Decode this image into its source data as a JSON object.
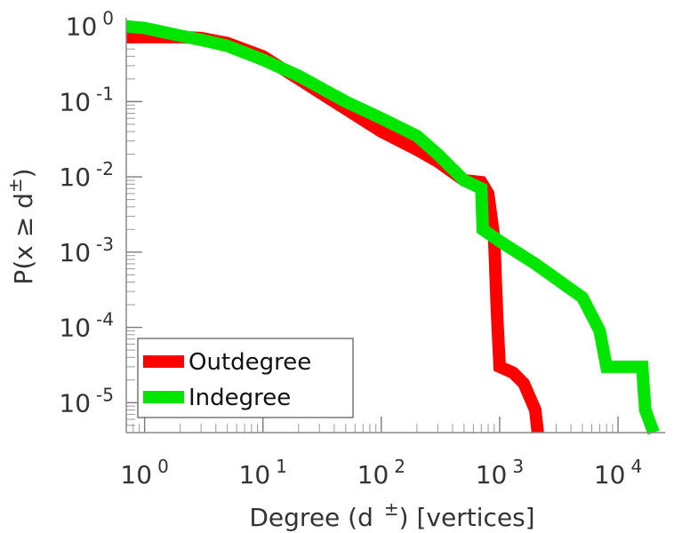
{
  "chart_data": {
    "type": "line",
    "scale": {
      "x": "log",
      "y": "log"
    },
    "xlabel": {
      "main": "Degree (d",
      "sup": "±",
      "suffix": ") [vertices]"
    },
    "ylabel": {
      "main": "P(x ≥ d",
      "sup": "±",
      "suffix": ")"
    },
    "xlim": [
      0.7,
      25000
    ],
    "ylim": [
      4e-06,
      1.3
    ],
    "x_ticks": [
      {
        "value": 1,
        "base": "10",
        "exp": "0"
      },
      {
        "value": 10,
        "base": "10",
        "exp": "1"
      },
      {
        "value": 100,
        "base": "10",
        "exp": "2"
      },
      {
        "value": 1000,
        "base": "10",
        "exp": "3"
      },
      {
        "value": 10000,
        "base": "10",
        "exp": "4"
      }
    ],
    "y_ticks": [
      {
        "value": 1,
        "base": "10",
        "exp": "0"
      },
      {
        "value": 0.1,
        "base": "10",
        "exp": "-1"
      },
      {
        "value": 0.01,
        "base": "10",
        "exp": "-2"
      },
      {
        "value": 0.001,
        "base": "10",
        "exp": "-3"
      },
      {
        "value": 0.0001,
        "base": "10",
        "exp": "-4"
      },
      {
        "value": 1e-05,
        "base": "10",
        "exp": "-5"
      }
    ],
    "legend_position": "bottom-left",
    "series": [
      {
        "name": "Outdegree",
        "color": "#ff0000",
        "points": [
          [
            0.7,
            0.72
          ],
          [
            1,
            0.72
          ],
          [
            2,
            0.72
          ],
          [
            3,
            0.7
          ],
          [
            5,
            0.6
          ],
          [
            10,
            0.4
          ],
          [
            20,
            0.2
          ],
          [
            50,
            0.08
          ],
          [
            100,
            0.04
          ],
          [
            200,
            0.023
          ],
          [
            300,
            0.016
          ],
          [
            500,
            0.009
          ],
          [
            700,
            0.0085
          ],
          [
            800,
            0.006
          ],
          [
            850,
            0.003
          ],
          [
            900,
            0.0015
          ],
          [
            950,
            0.00015
          ],
          [
            1000,
            3e-05
          ],
          [
            1300,
            2.5e-05
          ],
          [
            1600,
            1.8e-05
          ],
          [
            2000,
            8e-06
          ],
          [
            2100,
            4e-06
          ]
        ]
      },
      {
        "name": "Indegree",
        "color": "#00e600",
        "points": [
          [
            0.7,
            1.0
          ],
          [
            1,
            0.95
          ],
          [
            2,
            0.75
          ],
          [
            3,
            0.66
          ],
          [
            5,
            0.55
          ],
          [
            10,
            0.36
          ],
          [
            20,
            0.22
          ],
          [
            50,
            0.1
          ],
          [
            100,
            0.06
          ],
          [
            200,
            0.035
          ],
          [
            300,
            0.02
          ],
          [
            500,
            0.009
          ],
          [
            700,
            0.007
          ],
          [
            720,
            0.002
          ],
          [
            1000,
            0.0014
          ],
          [
            2000,
            0.0007
          ],
          [
            5000,
            0.00025
          ],
          [
            7000,
            9e-05
          ],
          [
            8000,
            3e-05
          ],
          [
            12000,
            3e-05
          ],
          [
            16000,
            3e-05
          ],
          [
            17000,
            8e-06
          ],
          [
            20000,
            4e-06
          ]
        ]
      }
    ]
  }
}
